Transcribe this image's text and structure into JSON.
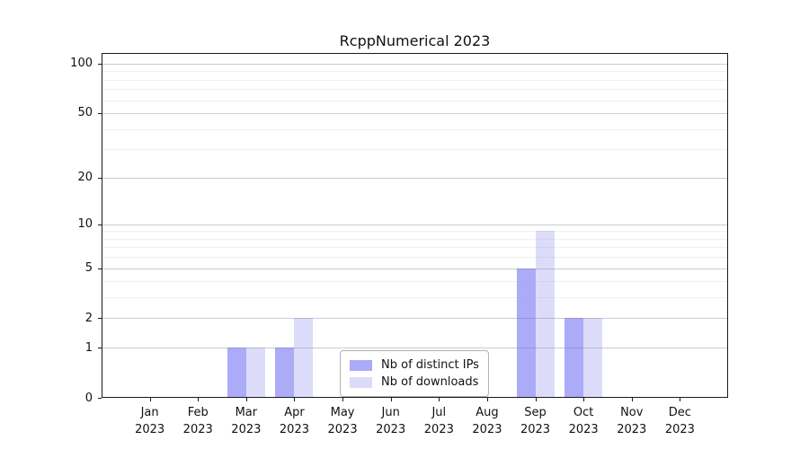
{
  "chart_data": {
    "type": "bar",
    "title": "RcppNumerical 2023",
    "categories": [
      "Jan",
      "Feb",
      "Mar",
      "Apr",
      "May",
      "Jun",
      "Jul",
      "Aug",
      "Sep",
      "Oct",
      "Nov",
      "Dec"
    ],
    "year_label": "2023",
    "series": [
      {
        "name": "Nb of distinct IPs",
        "color": "#ababf8",
        "values": [
          0,
          0,
          1,
          1,
          0,
          0,
          0,
          0,
          5,
          2,
          0,
          0
        ]
      },
      {
        "name": "Nb of downloads",
        "color": "#dcdcfa",
        "values": [
          0,
          0,
          1,
          2,
          0,
          0,
          0,
          0,
          9,
          2,
          0,
          0
        ]
      }
    ],
    "xlabel": "",
    "ylabel": "",
    "yscale": "log1p",
    "y_ticks": [
      0,
      1,
      2,
      5,
      10,
      20,
      50,
      100
    ],
    "y_minor_gridlines": [
      3,
      4,
      6,
      7,
      8,
      9,
      30,
      40,
      60,
      70,
      80,
      90
    ],
    "ylim": [
      0,
      116
    ],
    "grid": true,
    "legend_position": "inside-bottom-center"
  },
  "colors": {
    "bar_distinct_ips": "#ababf8",
    "bar_downloads": "#dcdcfa",
    "grid_major": "#cccccc",
    "grid_minor": "#ececec",
    "axis": "#1a1a1a",
    "legend_border": "#b3b3b3",
    "background": "#ffffff"
  }
}
